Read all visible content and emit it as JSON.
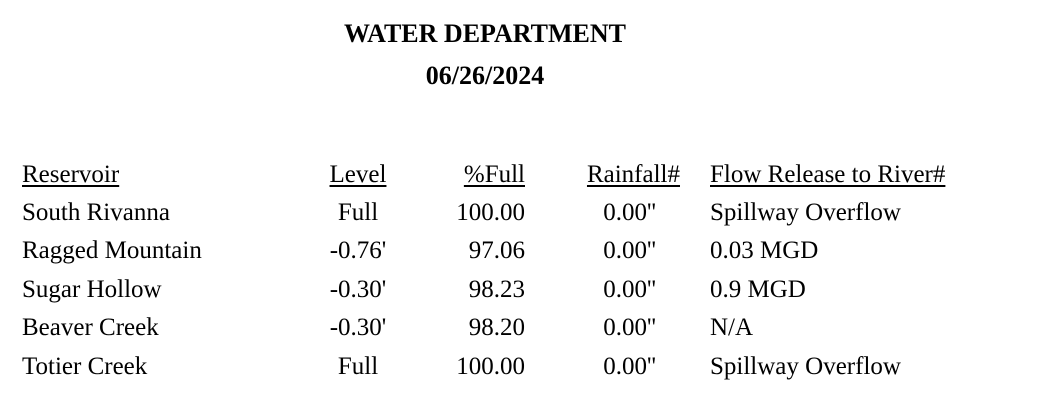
{
  "document": {
    "title": "WATER DEPARTMENT",
    "date": "06/26/2024"
  },
  "table": {
    "headers": {
      "reservoir": "Reservoir",
      "level": "Level",
      "percent_full": "%Full",
      "rainfall": "Rainfall#",
      "flow_release": "Flow Release to River#"
    },
    "rows": [
      {
        "reservoir": "South Rivanna",
        "level": "Full",
        "percent_full": "100.00",
        "rainfall": "0.00''",
        "flow_release": "Spillway Overflow"
      },
      {
        "reservoir": "Ragged Mountain",
        "level": "-0.76'",
        "percent_full": "97.06",
        "rainfall": "0.00''",
        "flow_release": "0.03 MGD"
      },
      {
        "reservoir": "Sugar Hollow",
        "level": "-0.30'",
        "percent_full": "98.23",
        "rainfall": "0.00''",
        "flow_release": "0.9 MGD"
      },
      {
        "reservoir": "Beaver Creek",
        "level": "-0.30'",
        "percent_full": "98.20",
        "rainfall": "0.00''",
        "flow_release": "N/A"
      },
      {
        "reservoir": "Totier Creek",
        "level": "Full",
        "percent_full": "100.00",
        "rainfall": "0.00''",
        "flow_release": "Spillway Overflow"
      }
    ]
  }
}
